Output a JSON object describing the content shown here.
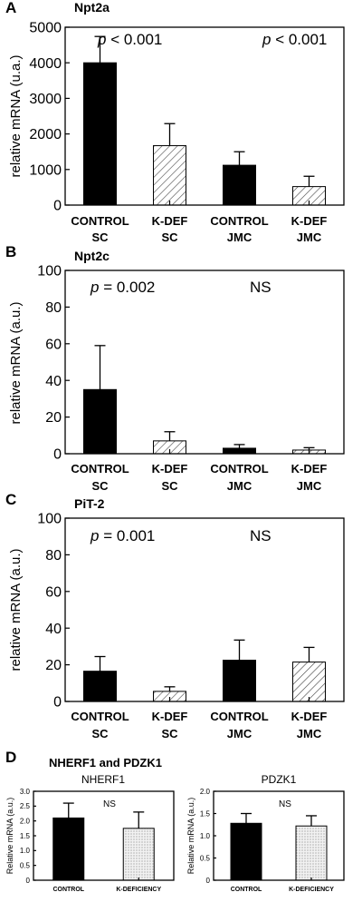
{
  "colors": {
    "control": "#000000",
    "kdef_hatch": "#444444",
    "background": "#ffffff"
  },
  "chart_data": [
    {
      "type": "bar",
      "panel_letter": "A",
      "title": "Npt2a",
      "ylabel": "relative mRNA (u.a.)",
      "ylim": [
        0,
        5000
      ],
      "yticks": [
        0,
        1000,
        2000,
        3000,
        4000,
        5000
      ],
      "categories": [
        [
          "CONTROL",
          "SC"
        ],
        [
          "K-DEF",
          "SC"
        ],
        [
          "CONTROL",
          "JMC"
        ],
        [
          "K-DEF",
          "JMC"
        ]
      ],
      "fills": [
        "solid",
        "hatch",
        "solid",
        "hatch"
      ],
      "values": [
        4000,
        1670,
        1120,
        520
      ],
      "errors": [
        740,
        620,
        380,
        290
      ],
      "annotations": [
        {
          "text": "p < 0.001",
          "italic_prefix": "p",
          "rest": " < 0.001",
          "group": 0
        },
        {
          "text": "p < 0.001",
          "italic_prefix": "p",
          "rest": " < 0.001",
          "group": 1
        }
      ],
      "grid": false
    },
    {
      "type": "bar",
      "panel_letter": "B",
      "title": "Npt2c",
      "ylabel": "relative mRNA (a.u.)",
      "ylim": [
        0,
        100
      ],
      "yticks": [
        0,
        20,
        40,
        60,
        80,
        100
      ],
      "categories": [
        [
          "CONTROL",
          "SC"
        ],
        [
          "K-DEF",
          "SC"
        ],
        [
          "CONTROL",
          "JMC"
        ],
        [
          "K-DEF",
          "JMC"
        ]
      ],
      "fills": [
        "solid",
        "hatch",
        "solid",
        "hatch"
      ],
      "values": [
        35,
        7,
        3,
        2
      ],
      "errors": [
        24,
        5,
        2,
        1.3
      ],
      "annotations": [
        {
          "text": "p = 0.002",
          "italic_prefix": "p",
          "rest": " = 0.002",
          "group": 0
        },
        {
          "text": "NS",
          "italic_prefix": "",
          "rest": "NS",
          "group": 1
        }
      ],
      "grid": false
    },
    {
      "type": "bar",
      "panel_letter": "C",
      "title": "PiT-2",
      "ylabel": "relative mRNA (a.u.)",
      "ylim": [
        0,
        100
      ],
      "yticks": [
        0,
        20,
        40,
        60,
        80,
        100
      ],
      "categories": [
        [
          "CONTROL",
          "SC"
        ],
        [
          "K-DEF",
          "SC"
        ],
        [
          "CONTROL",
          "JMC"
        ],
        [
          "K-DEF",
          "JMC"
        ]
      ],
      "fills": [
        "solid",
        "hatch",
        "solid",
        "hatch"
      ],
      "values": [
        16.5,
        5.5,
        22.5,
        21.5
      ],
      "errors": [
        8,
        2.5,
        11,
        8
      ],
      "annotations": [
        {
          "text": "p = 0.001",
          "italic_prefix": "p",
          "rest": " = 0.001",
          "group": 0
        },
        {
          "text": "NS",
          "italic_prefix": "",
          "rest": "NS",
          "group": 1
        }
      ],
      "grid": false
    },
    {
      "type": "bar",
      "panel_letter": "D",
      "title": "NHERF1 and PDZK1",
      "subtitle": "NHERF1",
      "ylabel": "Relative mRNA (a.u.)",
      "ylim": [
        0,
        3.0
      ],
      "yticks": [
        "0",
        "0.5",
        "1.0",
        "1.5",
        "2.0",
        "2.5",
        "3.0"
      ],
      "categories": [
        [
          "CONTROL"
        ],
        [
          "K-DEFICIENCY"
        ]
      ],
      "fills": [
        "solid",
        "dots"
      ],
      "values": [
        2.1,
        1.75
      ],
      "errors": [
        0.5,
        0.55
      ],
      "annotations": [
        {
          "text": "NS",
          "italic_prefix": "",
          "rest": "NS",
          "group": -1
        }
      ],
      "grid": false
    },
    {
      "type": "bar",
      "panel_letter": "",
      "title": "",
      "subtitle": "PDZK1",
      "ylabel": "Relative mRNA (a.u.)",
      "ylim": [
        0,
        2.0
      ],
      "yticks": [
        "0",
        "0.5",
        "1.0",
        "1.5",
        "2.0"
      ],
      "categories": [
        [
          "CONTROL"
        ],
        [
          "K-DEFICIENCY"
        ]
      ],
      "fills": [
        "solid",
        "dots"
      ],
      "values": [
        1.28,
        1.22
      ],
      "errors": [
        0.22,
        0.23
      ],
      "annotations": [
        {
          "text": "NS",
          "italic_prefix": "",
          "rest": "NS",
          "group": -1
        }
      ],
      "grid": false
    }
  ]
}
